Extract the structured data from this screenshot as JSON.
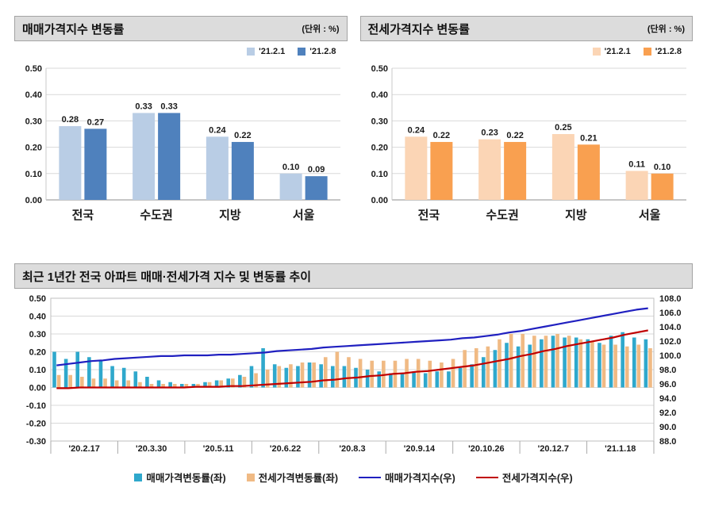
{
  "colors": {
    "sale_light": "#B9CDE5",
    "sale_dark": "#4F81BD",
    "jeonse_light": "#FBD5B5",
    "jeonse_dark": "#F9A050",
    "trend_sale_bar": "#2FA8CC",
    "trend_jeonse_bar": "#F0BA84",
    "sale_index_line": "#2020C0",
    "jeonse_index_line": "#C00000",
    "gridline": "#D9D9D9",
    "axis": "#8C8C8C",
    "plot_border": "#BFBFBF"
  },
  "chart_data": [
    {
      "id": "sale-bar",
      "type": "bar",
      "title": "매매가격지수 변동률",
      "unit": "(단위 : %)",
      "categories": [
        "전국",
        "수도권",
        "지방",
        "서울"
      ],
      "series": [
        {
          "name": "'21.2.1",
          "color_key": "sale_light",
          "values": [
            0.28,
            0.33,
            0.24,
            0.1
          ]
        },
        {
          "name": "'21.2.8",
          "color_key": "sale_dark",
          "values": [
            0.27,
            0.33,
            0.22,
            0.09
          ]
        }
      ],
      "yticks": [
        "0.50",
        "0.40",
        "0.30",
        "0.20",
        "0.10",
        "0.00"
      ],
      "ylim": [
        0,
        0.5
      ],
      "grid": true,
      "legend_position": "top-right"
    },
    {
      "id": "jeonse-bar",
      "type": "bar",
      "title": "전세가격지수 변동률",
      "unit": "(단위 : %)",
      "categories": [
        "전국",
        "수도권",
        "지방",
        "서울"
      ],
      "series": [
        {
          "name": "'21.2.1",
          "color_key": "jeonse_light",
          "values": [
            0.24,
            0.23,
            0.25,
            0.11
          ]
        },
        {
          "name": "'21.2.8",
          "color_key": "jeonse_dark",
          "values": [
            0.22,
            0.22,
            0.21,
            0.1
          ]
        }
      ],
      "yticks": [
        "0.50",
        "0.40",
        "0.30",
        "0.20",
        "0.10",
        "0.00"
      ],
      "ylim": [
        0,
        0.5
      ],
      "grid": true,
      "legend_position": "top-right"
    },
    {
      "id": "trend-combo",
      "type": "bar",
      "subtype": "combo-bar-line",
      "title": "최근 1년간 전국 아파트 매매·전세가격 지수 및 변동률 추이",
      "x_labels": [
        "'20.2.17",
        "'20.3.30",
        "'20.5.11",
        "'20.6.22",
        "'20.8.3",
        "'20.9.14",
        "'20.10.26",
        "'20.12.7",
        "'21.1.18"
      ],
      "left_ticks": [
        "0.50",
        "0.40",
        "0.30",
        "0.20",
        "0.10",
        "0.00",
        "-0.10",
        "-0.20",
        "-0.30"
      ],
      "right_ticks": [
        "108.0",
        "106.0",
        "104.0",
        "102.0",
        "100.0",
        "98.0",
        "96.0",
        "94.0",
        "92.0",
        "90.0",
        "88.0"
      ],
      "left_lim": [
        -0.3,
        0.5
      ],
      "right_lim": [
        88,
        108
      ],
      "grid": true,
      "legend_position": "bottom-center",
      "bar_series": [
        {
          "name": "매매가격변동률(좌)",
          "color_key": "trend_sale_bar",
          "values": [
            0.2,
            0.16,
            0.2,
            0.17,
            0.15,
            0.12,
            0.11,
            0.09,
            0.06,
            0.04,
            0.03,
            0.02,
            0.02,
            0.03,
            0.04,
            0.05,
            0.07,
            0.12,
            0.22,
            0.13,
            0.11,
            0.12,
            0.14,
            0.13,
            0.12,
            0.12,
            0.11,
            0.1,
            0.09,
            0.08,
            0.08,
            0.09,
            0.08,
            0.09,
            0.09,
            0.11,
            0.13,
            0.17,
            0.21,
            0.25,
            0.23,
            0.24,
            0.27,
            0.29,
            0.28,
            0.28,
            0.27,
            0.25,
            0.29,
            0.31,
            0.28,
            0.27
          ]
        },
        {
          "name": "전세가격변동률(좌)",
          "color_key": "trend_jeonse_bar",
          "values": [
            0.07,
            0.07,
            0.06,
            0.05,
            0.05,
            0.04,
            0.04,
            0.03,
            0.02,
            0.02,
            0.02,
            0.02,
            0.02,
            0.03,
            0.04,
            0.05,
            0.06,
            0.08,
            0.1,
            0.12,
            0.13,
            0.14,
            0.14,
            0.17,
            0.2,
            0.17,
            0.16,
            0.15,
            0.15,
            0.15,
            0.16,
            0.16,
            0.15,
            0.14,
            0.16,
            0.21,
            0.22,
            0.23,
            0.27,
            0.3,
            0.3,
            0.29,
            0.29,
            0.3,
            0.29,
            0.27,
            0.26,
            0.24,
            0.24,
            0.23,
            0.24,
            0.22
          ]
        }
      ],
      "line_series": [
        {
          "name": "매매가격지수(우)",
          "color_key": "sale_index_line",
          "values": [
            98.6,
            98.8,
            99.0,
            99.2,
            99.3,
            99.5,
            99.6,
            99.7,
            99.8,
            99.9,
            99.9,
            100.0,
            100.0,
            100.0,
            100.1,
            100.1,
            100.2,
            100.3,
            100.4,
            100.6,
            100.7,
            100.8,
            100.9,
            101.1,
            101.2,
            101.3,
            101.4,
            101.5,
            101.6,
            101.7,
            101.8,
            101.9,
            102.0,
            102.1,
            102.2,
            102.4,
            102.5,
            102.7,
            102.9,
            103.2,
            103.4,
            103.7,
            104.0,
            104.3,
            104.6,
            104.9,
            105.2,
            105.5,
            105.8,
            106.1,
            106.4,
            106.6
          ]
        },
        {
          "name": "전세가격지수(우)",
          "color_key": "jeonse_index_line",
          "values": [
            95.4,
            95.4,
            95.5,
            95.5,
            95.5,
            95.5,
            95.5,
            95.5,
            95.5,
            95.5,
            95.5,
            95.5,
            95.6,
            95.6,
            95.6,
            95.7,
            95.7,
            95.8,
            95.9,
            96.0,
            96.1,
            96.2,
            96.3,
            96.5,
            96.6,
            96.8,
            96.9,
            97.1,
            97.2,
            97.4,
            97.5,
            97.7,
            97.8,
            98.0,
            98.2,
            98.4,
            98.6,
            98.9,
            99.2,
            99.5,
            99.9,
            100.2,
            100.6,
            100.9,
            101.3,
            101.6,
            101.9,
            102.2,
            102.5,
            102.9,
            103.2,
            103.5
          ]
        }
      ]
    }
  ]
}
